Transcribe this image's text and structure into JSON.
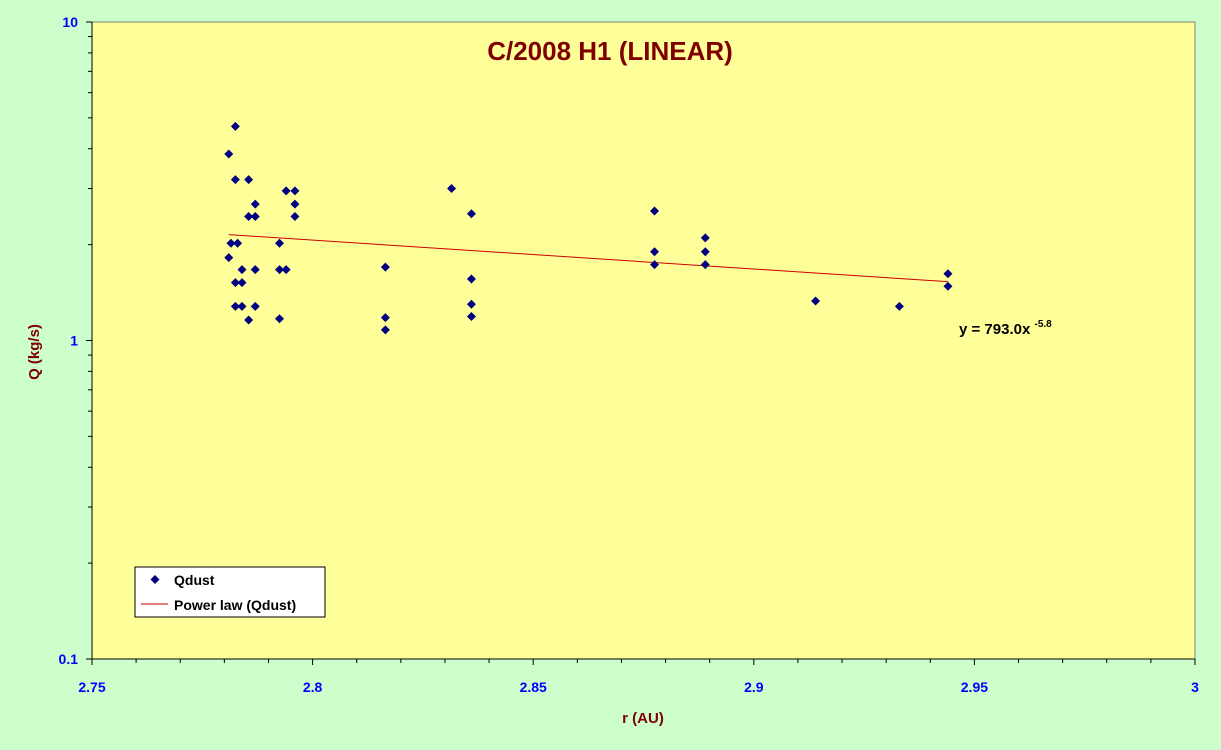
{
  "chart_data": {
    "type": "scatter",
    "title": "C/2008 H1 (LINEAR)",
    "xlabel": "r (AU)",
    "ylabel": "Q (kg/s)",
    "xlim": [
      2.75,
      3.0
    ],
    "ylim": [
      0.1,
      10
    ],
    "yscale": "log",
    "x_ticks": [
      "2.75",
      "2.8",
      "2.85",
      "2.9",
      "2.95",
      "3"
    ],
    "y_ticks": [
      "0.1",
      "1",
      "10"
    ],
    "legend_position": "bottom-left",
    "series": [
      {
        "name": "Qdust",
        "marker": "diamond",
        "color": "#000080",
        "points": [
          [
            2.781,
            3.85
          ],
          [
            2.7815,
            2.02
          ],
          [
            2.781,
            1.82
          ],
          [
            2.7825,
            4.7
          ],
          [
            2.7825,
            3.2
          ],
          [
            2.783,
            2.02
          ],
          [
            2.7825,
            1.52
          ],
          [
            2.7825,
            1.28
          ],
          [
            2.784,
            1.67
          ],
          [
            2.784,
            1.52
          ],
          [
            2.784,
            1.28
          ],
          [
            2.7855,
            3.2
          ],
          [
            2.7855,
            2.45
          ],
          [
            2.7855,
            1.16
          ],
          [
            2.787,
            2.68
          ],
          [
            2.787,
            2.45
          ],
          [
            2.787,
            1.67
          ],
          [
            2.787,
            1.28
          ],
          [
            2.7925,
            2.02
          ],
          [
            2.7925,
            1.67
          ],
          [
            2.7925,
            1.17
          ],
          [
            2.794,
            2.95
          ],
          [
            2.794,
            1.67
          ],
          [
            2.796,
            2.95
          ],
          [
            2.796,
            2.68
          ],
          [
            2.796,
            2.45
          ],
          [
            2.8165,
            1.7
          ],
          [
            2.8165,
            1.18
          ],
          [
            2.8165,
            1.08
          ],
          [
            2.8315,
            3.0
          ],
          [
            2.836,
            2.5
          ],
          [
            2.836,
            1.56
          ],
          [
            2.836,
            1.3
          ],
          [
            2.836,
            1.19
          ],
          [
            2.8775,
            2.55
          ],
          [
            2.8775,
            1.9
          ],
          [
            2.8775,
            1.73
          ],
          [
            2.889,
            2.1
          ],
          [
            2.889,
            1.9
          ],
          [
            2.889,
            1.73
          ],
          [
            2.914,
            1.33
          ],
          [
            2.933,
            1.28
          ],
          [
            2.944,
            1.62
          ],
          [
            2.944,
            1.48
          ]
        ]
      },
      {
        "name": "Power law (Qdust)",
        "type": "line",
        "color": "#cc0000",
        "x": [
          2.781,
          2.944
        ],
        "y": [
          2.15,
          1.53
        ]
      }
    ],
    "annotations": [
      {
        "text": "y = 793.0x",
        "superscript": "-5.8"
      }
    ]
  }
}
